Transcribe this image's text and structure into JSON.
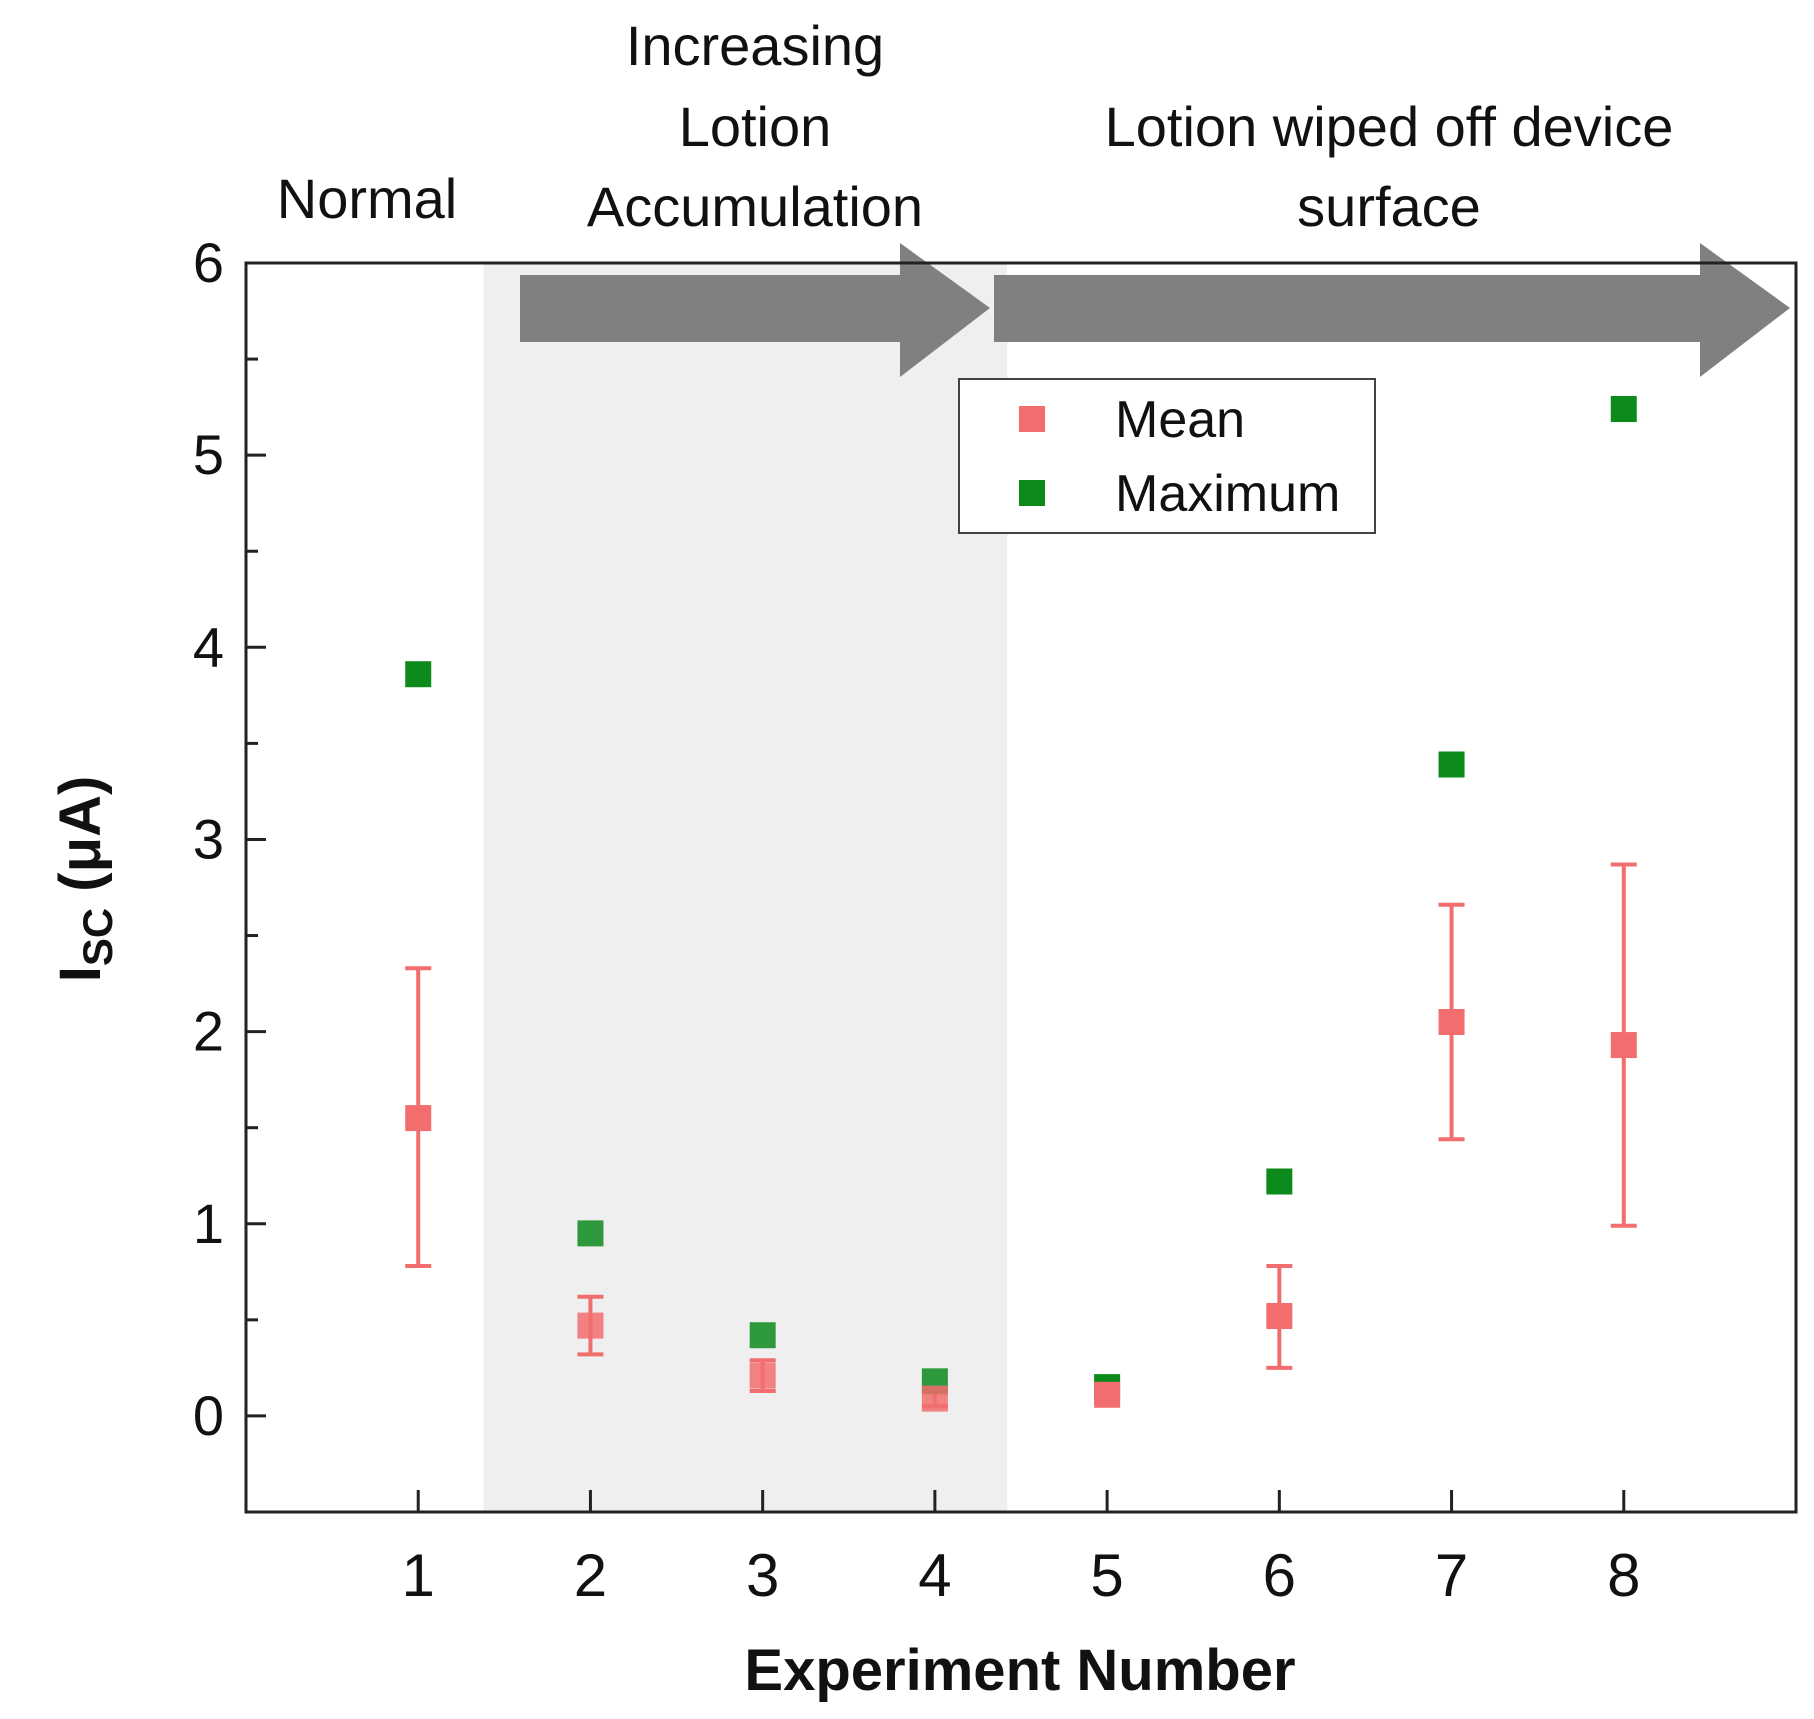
{
  "chart_data": {
    "type": "scatter",
    "title": "",
    "xlabel": "Experiment Number",
    "ylabel_main": "I",
    "ylabel_sub": "SC",
    "ylabel_unit": " (μA)",
    "x": [
      1,
      2,
      3,
      4,
      5,
      6,
      7,
      8
    ],
    "xlim": [
      0,
      9
    ],
    "ylim": [
      -0.5,
      6
    ],
    "x_ticks": [
      1,
      2,
      3,
      4,
      5,
      6,
      7,
      8
    ],
    "y_ticks": [
      0,
      1,
      2,
      3,
      4,
      5,
      6
    ],
    "series": [
      {
        "name": "Mean",
        "color": "#f26d6d",
        "values": [
          1.55,
          0.47,
          0.21,
          0.09,
          0.11,
          0.52,
          2.05,
          1.93
        ],
        "error_low": [
          0.78,
          0.32,
          0.13,
          0.05,
          0.07,
          0.25,
          1.44,
          0.99
        ],
        "error_high": [
          2.33,
          0.62,
          0.29,
          0.13,
          0.15,
          0.78,
          2.66,
          2.87
        ]
      },
      {
        "name": "Maximum",
        "color": "#0c8a1c",
        "values": [
          3.86,
          0.95,
          0.42,
          0.18,
          0.15,
          1.22,
          3.39,
          5.24
        ]
      }
    ],
    "shaded_region": {
      "x_start": 1.38,
      "x_end": 4.42,
      "color": "#efefef"
    },
    "legend_position": "top-center",
    "grid": false,
    "annotations": [
      {
        "id": "normal",
        "lines": [
          "Normal"
        ]
      },
      {
        "id": "accumulation",
        "lines": [
          "Increasing",
          "Lotion",
          "Accumulation"
        ]
      },
      {
        "id": "wiped",
        "lines": [
          "Lotion wiped off device",
          "surface"
        ]
      }
    ],
    "arrow_color": "#808080"
  }
}
